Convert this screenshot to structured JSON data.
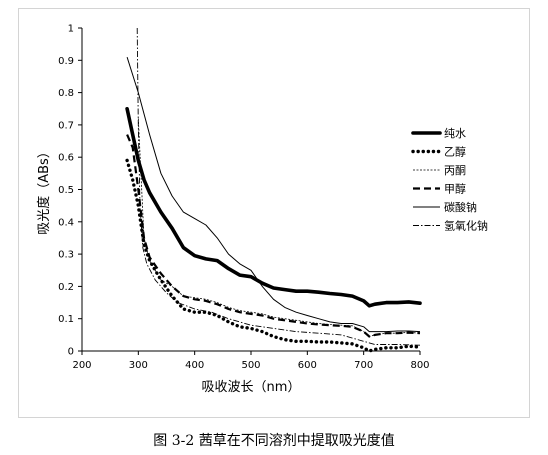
{
  "caption": "图 3-2  茜草在不同溶剂中提取吸光度值",
  "chart_data": {
    "type": "line",
    "xlabel": "吸收波长（nm）",
    "ylabel": "吸光度（ABs）",
    "xlim": [
      200,
      800
    ],
    "ylim": [
      0,
      1
    ],
    "x_ticks": [
      "200",
      "300",
      "400",
      "500",
      "600",
      "700",
      "800"
    ],
    "y_ticks": [
      "0",
      "0.1",
      "0.2",
      "0.3",
      "0.4",
      "0.5",
      "0.6",
      "0.7",
      "0.8",
      "0.9",
      "1"
    ],
    "grid": false,
    "legend_position": "right",
    "series": [
      {
        "name": "纯水",
        "style": "thick",
        "points": [
          [
            280,
            0.75
          ],
          [
            290,
            0.67
          ],
          [
            300,
            0.59
          ],
          [
            310,
            0.53
          ],
          [
            320,
            0.49
          ],
          [
            340,
            0.43
          ],
          [
            360,
            0.38
          ],
          [
            380,
            0.32
          ],
          [
            400,
            0.295
          ],
          [
            420,
            0.285
          ],
          [
            440,
            0.28
          ],
          [
            460,
            0.255
          ],
          [
            480,
            0.235
          ],
          [
            500,
            0.23
          ],
          [
            520,
            0.21
          ],
          [
            540,
            0.195
          ],
          [
            560,
            0.19
          ],
          [
            580,
            0.185
          ],
          [
            600,
            0.185
          ],
          [
            620,
            0.182
          ],
          [
            640,
            0.178
          ],
          [
            660,
            0.175
          ],
          [
            680,
            0.17
          ],
          [
            700,
            0.155
          ],
          [
            710,
            0.14
          ],
          [
            720,
            0.145
          ],
          [
            740,
            0.15
          ],
          [
            760,
            0.15
          ],
          [
            780,
            0.152
          ],
          [
            800,
            0.148
          ]
        ]
      },
      {
        "name": "乙醇",
        "style": "dotted",
        "points": [
          [
            280,
            0.59
          ],
          [
            290,
            0.53
          ],
          [
            300,
            0.45
          ],
          [
            310,
            0.33
          ],
          [
            320,
            0.28
          ],
          [
            340,
            0.22
          ],
          [
            360,
            0.17
          ],
          [
            380,
            0.13
          ],
          [
            400,
            0.12
          ],
          [
            420,
            0.12
          ],
          [
            440,
            0.11
          ],
          [
            460,
            0.09
          ],
          [
            480,
            0.075
          ],
          [
            500,
            0.07
          ],
          [
            520,
            0.06
          ],
          [
            540,
            0.045
          ],
          [
            560,
            0.035
          ],
          [
            580,
            0.03
          ],
          [
            600,
            0.03
          ],
          [
            620,
            0.028
          ],
          [
            640,
            0.028
          ],
          [
            660,
            0.025
          ],
          [
            680,
            0.022
          ],
          [
            700,
            0.01
          ],
          [
            710,
            0.0
          ],
          [
            720,
            0.005
          ],
          [
            740,
            0.01
          ],
          [
            760,
            0.01
          ],
          [
            780,
            0.015
          ],
          [
            800,
            0.012
          ]
        ]
      },
      {
        "name": "丙酮",
        "style": "dashed-fine",
        "points": [
          [
            300,
            0.72
          ],
          [
            310,
            0.35
          ],
          [
            320,
            0.28
          ],
          [
            340,
            0.22
          ],
          [
            360,
            0.2
          ],
          [
            380,
            0.17
          ],
          [
            400,
            0.165
          ],
          [
            420,
            0.16
          ],
          [
            440,
            0.15
          ],
          [
            460,
            0.135
          ],
          [
            480,
            0.125
          ],
          [
            500,
            0.12
          ],
          [
            520,
            0.115
          ],
          [
            540,
            0.105
          ],
          [
            560,
            0.1
          ],
          [
            580,
            0.095
          ],
          [
            600,
            0.09
          ],
          [
            620,
            0.085
          ],
          [
            640,
            0.082
          ],
          [
            660,
            0.08
          ],
          [
            680,
            0.078
          ],
          [
            700,
            0.06
          ],
          [
            710,
            0.045
          ],
          [
            720,
            0.05
          ],
          [
            740,
            0.055
          ],
          [
            760,
            0.055
          ],
          [
            780,
            0.058
          ],
          [
            800,
            0.055
          ]
        ]
      },
      {
        "name": "甲醇",
        "style": "dashed",
        "points": [
          [
            280,
            0.67
          ],
          [
            290,
            0.63
          ],
          [
            300,
            0.5
          ],
          [
            310,
            0.35
          ],
          [
            320,
            0.29
          ],
          [
            340,
            0.24
          ],
          [
            360,
            0.2
          ],
          [
            380,
            0.17
          ],
          [
            400,
            0.16
          ],
          [
            420,
            0.155
          ],
          [
            440,
            0.145
          ],
          [
            460,
            0.13
          ],
          [
            480,
            0.12
          ],
          [
            500,
            0.115
          ],
          [
            520,
            0.11
          ],
          [
            540,
            0.1
          ],
          [
            560,
            0.095
          ],
          [
            580,
            0.09
          ],
          [
            600,
            0.085
          ],
          [
            620,
            0.082
          ],
          [
            640,
            0.08
          ],
          [
            660,
            0.078
          ],
          [
            680,
            0.075
          ],
          [
            700,
            0.06
          ],
          [
            710,
            0.045
          ],
          [
            720,
            0.05
          ],
          [
            740,
            0.055
          ],
          [
            760,
            0.055
          ],
          [
            780,
            0.057
          ],
          [
            800,
            0.055
          ]
        ]
      },
      {
        "name": "碳酸钠",
        "style": "thin",
        "points": [
          [
            280,
            0.91
          ],
          [
            300,
            0.8
          ],
          [
            320,
            0.67
          ],
          [
            340,
            0.55
          ],
          [
            360,
            0.48
          ],
          [
            380,
            0.43
          ],
          [
            400,
            0.41
          ],
          [
            420,
            0.39
          ],
          [
            440,
            0.35
          ],
          [
            460,
            0.3
          ],
          [
            480,
            0.27
          ],
          [
            500,
            0.25
          ],
          [
            520,
            0.2
          ],
          [
            540,
            0.16
          ],
          [
            560,
            0.135
          ],
          [
            580,
            0.12
          ],
          [
            600,
            0.11
          ],
          [
            620,
            0.1
          ],
          [
            640,
            0.09
          ],
          [
            660,
            0.085
          ],
          [
            680,
            0.085
          ],
          [
            700,
            0.075
          ],
          [
            710,
            0.06
          ],
          [
            720,
            0.06
          ],
          [
            740,
            0.06
          ],
          [
            760,
            0.062
          ],
          [
            780,
            0.062
          ],
          [
            800,
            0.06
          ]
        ]
      },
      {
        "name": "氢氧化钠",
        "style": "dashdot",
        "points": [
          [
            298,
            1.0
          ],
          [
            300,
            0.7
          ],
          [
            303,
            0.45
          ],
          [
            308,
            0.32
          ],
          [
            315,
            0.27
          ],
          [
            330,
            0.22
          ],
          [
            350,
            0.18
          ],
          [
            370,
            0.15
          ],
          [
            400,
            0.13
          ],
          [
            430,
            0.12
          ],
          [
            460,
            0.1
          ],
          [
            500,
            0.08
          ],
          [
            540,
            0.07
          ],
          [
            580,
            0.06
          ],
          [
            620,
            0.055
          ],
          [
            660,
            0.05
          ],
          [
            700,
            0.03
          ],
          [
            720,
            0.02
          ],
          [
            760,
            0.02
          ],
          [
            800,
            0.018
          ]
        ]
      }
    ]
  }
}
